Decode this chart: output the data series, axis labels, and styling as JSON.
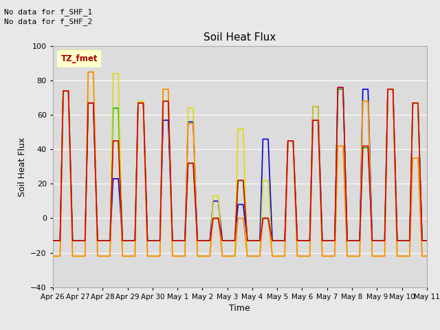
{
  "title": "Soil Heat Flux",
  "xlabel": "Time",
  "ylabel": "Soil Heat Flux",
  "ylim": [
    -40,
    100
  ],
  "yticks": [
    -40,
    -20,
    0,
    20,
    40,
    60,
    80,
    100
  ],
  "no_data_text": [
    "No data for f_SHF_1",
    "No data for f_SHF_2"
  ],
  "tz_label": "TZ_fmet",
  "x_tick_labels": [
    "Apr 26",
    "Apr 27",
    "Apr 28",
    "Apr 29",
    "Apr 30",
    "May 1",
    "May 2",
    "May 3",
    "May 4",
    "May 5",
    "May 6",
    "May 7",
    "May 8",
    "May 9",
    "May 10",
    "May 11"
  ],
  "series_colors": {
    "SHF1": "#dd0000",
    "SHF2": "#ff8800",
    "SHF3": "#dddd00",
    "SHF4": "#00bb00",
    "SHF5": "#0000dd"
  },
  "background_color": "#e8e8e8",
  "plot_bg_color": "#dcdcdc",
  "legend_bg": "#ffffcc",
  "legend_border": "#999900",
  "figsize": [
    6.4,
    4.8
  ],
  "dpi": 100
}
